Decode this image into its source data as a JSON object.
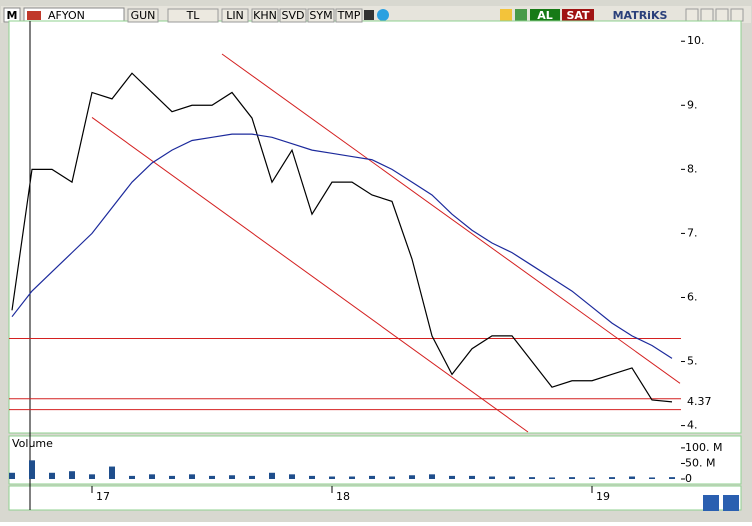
{
  "toolbar": {
    "logo": "M",
    "symbol": "AFYON",
    "buttons": [
      "GUN",
      "TL",
      "LIN",
      "KHN",
      "SVD",
      "SYM",
      "TMP"
    ],
    "buy": "AL",
    "sell": "SAT",
    "brand": "MATRiKS"
  },
  "chart_data": [
    {
      "type": "line",
      "categories": [
        null,
        null,
        null,
        null,
        "17",
        null,
        null,
        null,
        null,
        null,
        null,
        null,
        null,
        null,
        null,
        null,
        "18",
        null,
        null,
        null,
        null,
        null,
        null,
        null,
        null,
        null,
        null,
        null,
        null,
        "19",
        null,
        null,
        null,
        null
      ],
      "series": [
        {
          "color": "#000000",
          "values": [
            5.8,
            8.0,
            8.0,
            7.8,
            9.2,
            9.1,
            9.5,
            9.2,
            8.9,
            9.0,
            9.0,
            9.2,
            8.8,
            7.8,
            8.3,
            7.3,
            7.8,
            7.8,
            7.6,
            7.5,
            6.6,
            5.4,
            4.8,
            5.2,
            5.4,
            5.4,
            5.0,
            4.6,
            4.7,
            4.7,
            4.8,
            4.9,
            4.4,
            4.37
          ]
        },
        {
          "color": "#1c2a9c",
          "values": [
            5.7,
            6.1,
            6.4,
            6.7,
            7.0,
            7.4,
            7.8,
            8.1,
            8.3,
            8.45,
            8.5,
            8.55,
            8.55,
            8.5,
            8.4,
            8.3,
            8.25,
            8.2,
            8.15,
            8.0,
            7.8,
            7.6,
            7.3,
            7.05,
            6.85,
            6.7,
            6.5,
            6.3,
            6.1,
            5.85,
            5.6,
            5.4,
            5.25,
            5.05
          ]
        }
      ],
      "last_price_label": "4.37",
      "hlines": [
        5.36,
        4.42,
        4.25
      ],
      "trendlines": [
        {
          "x": [
            10.5,
            33.4
          ],
          "y": [
            9.8,
            4.66
          ]
        },
        {
          "x": [
            4,
            25.8
          ],
          "y": [
            8.81,
            3.9
          ]
        }
      ],
      "drawing_color": "#d42020",
      "ylim": [
        3.9,
        10.3
      ],
      "yticks": [
        {
          "value": 4,
          "label": "4."
        },
        {
          "value": 5,
          "label": "5."
        },
        {
          "value": 6,
          "label": "6."
        },
        {
          "value": 7,
          "label": "7."
        },
        {
          "value": 8,
          "label": "8."
        },
        {
          "value": 9,
          "label": "9."
        },
        {
          "value": 10,
          "label": "10."
        }
      ]
    },
    {
      "type": "bar",
      "title": "Volume",
      "color": "#1f4e8c",
      "values": [
        20000000,
        60000000,
        20000000,
        25000000,
        15000000,
        40000000,
        10000000,
        15000000,
        10000000,
        15000000,
        10000000,
        12000000,
        10000000,
        20000000,
        15000000,
        10000000,
        8000000,
        8000000,
        10000000,
        8000000,
        12000000,
        15000000,
        10000000,
        10000000,
        8000000,
        8000000,
        6000000,
        5000000,
        6000000,
        5000000,
        6000000,
        8000000,
        5000000,
        6000000
      ],
      "ylim": [
        0,
        135000000
      ],
      "yticks": [
        0,
        {
          "value": 50000000,
          "label": "50. M"
        },
        {
          "value": 100000000,
          "label": "100. M"
        }
      ]
    }
  ]
}
